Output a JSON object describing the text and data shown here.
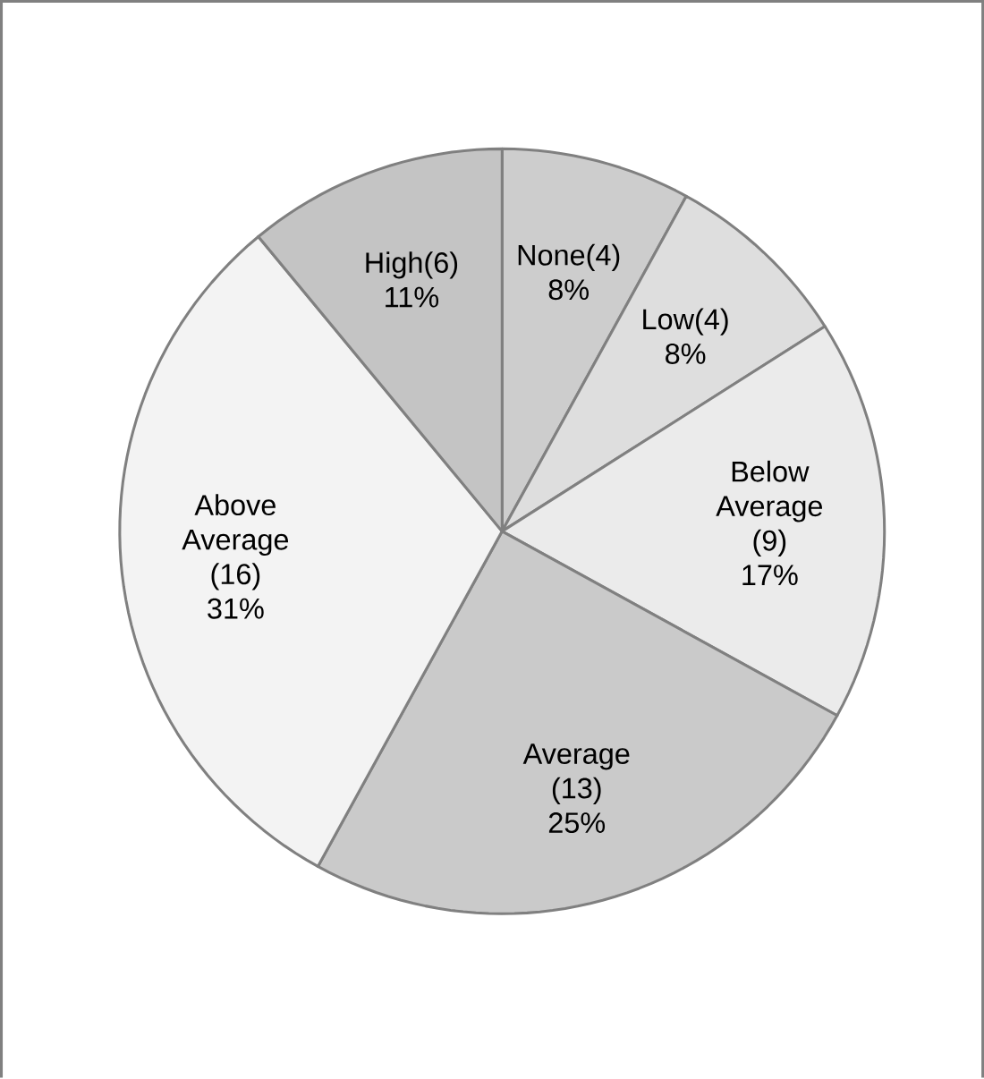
{
  "chart_data": {
    "type": "pie",
    "categories": [
      "None(4)",
      "Low(4)",
      "Below Average (9)",
      "Average (13)",
      "Above Average (16)",
      "High(6)"
    ],
    "values": [
      8,
      8,
      17,
      25,
      31,
      11
    ],
    "value_labels": [
      "8%",
      "8%",
      "17%",
      "25%",
      "31%",
      "11%"
    ],
    "colors": [
      "#cdcdcd",
      "#dedede",
      "#ebebeb",
      "#cacaca",
      "#f3f3f3",
      "#c4c4c4"
    ]
  }
}
